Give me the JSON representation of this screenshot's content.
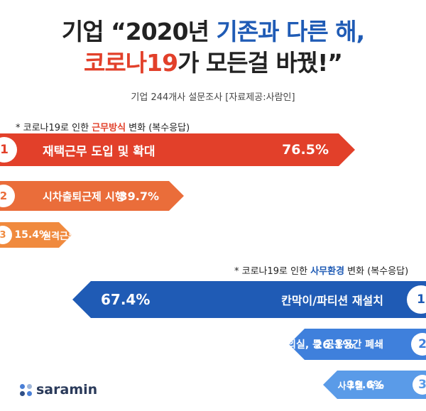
{
  "title": {
    "line1_a": "기업 “2020년 ",
    "line1_b": "기존과 다른 해,",
    "line2_a": "코로나19",
    "line2_b": "가 모든걸 바꿨!”"
  },
  "subtitle": "기업 244개사 설문조사 [자료제공:사람인]",
  "chart_data": [
    {
      "type": "bar",
      "note_prefix": "* 코로나19로 인한 ",
      "note_keyword": "근무방식",
      "note_suffix": " 변화 (복수응답)",
      "categories": [
        "재택근무 도입 및 확대",
        "시차출퇴근제 시행",
        "원격근무 시스템 도입"
      ],
      "ranks": [
        "1",
        "2",
        "3"
      ],
      "values": [
        76.5,
        39.7,
        15.4
      ],
      "value_labels": [
        "76.5%",
        "39.7%",
        "15.4%"
      ],
      "colors": [
        "#e2402a",
        "#ea6d3a",
        "#f08a3e"
      ]
    },
    {
      "type": "bar",
      "note_prefix": "* 코로나19로 인한 ",
      "note_keyword": "사무환경",
      "note_suffix": " 변화 (복수응답)",
      "categories": [
        "칸막이/파티션 재설치",
        "회의실, 등 공용공간 폐쇄",
        "사무실 축소"
      ],
      "ranks": [
        "1",
        "2",
        "3"
      ],
      "values": [
        67.4,
        26.1,
        19.6
      ],
      "value_labels": [
        "67.4%",
        "26.1%",
        "19.6%"
      ],
      "colors": [
        "#1f5bb5",
        "#3f80dc",
        "#5a9be8"
      ]
    }
  ],
  "logo": {
    "text": "saramin",
    "dot_colors": [
      "#4a7fd6",
      "#9fb6d9",
      "#2f4f86",
      "#4a7fd6"
    ]
  }
}
